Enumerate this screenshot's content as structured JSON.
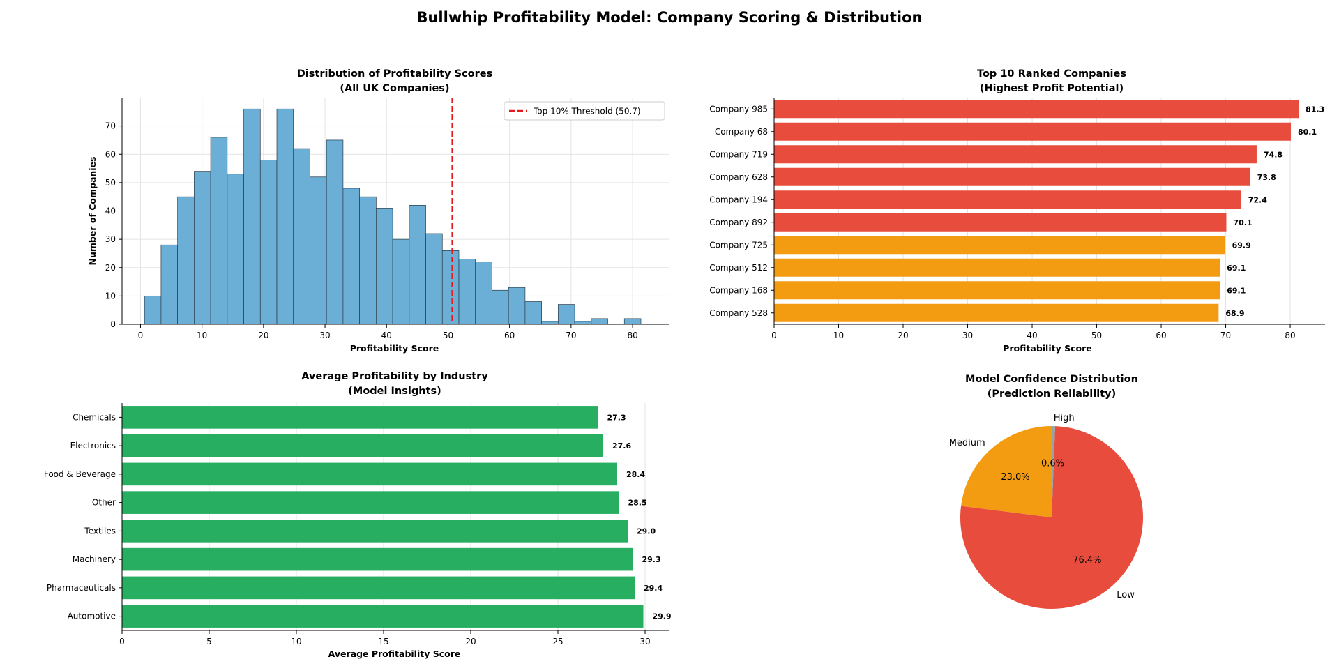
{
  "suptitle": "Bullwhip Profitability Model: Company Scoring & Distribution",
  "chart_data": [
    {
      "type": "bar",
      "subtype": "histogram",
      "title": [
        "Distribution of Profitability Scores",
        "(All UK Companies)"
      ],
      "xlabel": "Profitability Score",
      "ylabel": "Number of Companies",
      "xlim": [
        -3,
        86
      ],
      "ylim": [
        0,
        80
      ],
      "xticks": [
        0,
        10,
        20,
        30,
        40,
        50,
        60,
        70,
        80
      ],
      "yticks": [
        0,
        10,
        20,
        30,
        40,
        50,
        60,
        70
      ],
      "grid": true,
      "bin_edges": [
        0.65,
        3.34,
        6.03,
        8.72,
        11.41,
        14.1,
        16.79,
        19.48,
        22.17,
        24.86,
        27.55,
        30.24,
        32.93,
        35.62,
        38.31,
        41.0,
        43.69,
        46.38,
        49.07,
        51.76,
        54.45,
        57.14,
        59.83,
        62.52,
        65.21,
        67.9,
        70.59,
        73.28,
        75.97,
        78.66,
        81.35
      ],
      "counts": [
        10,
        28,
        45,
        54,
        66,
        53,
        76,
        58,
        76,
        62,
        52,
        65,
        48,
        45,
        41,
        30,
        42,
        32,
        26,
        23,
        22,
        12,
        13,
        8,
        1,
        7,
        1,
        2,
        0,
        2
      ],
      "bar_color": "#6baed6",
      "threshold": {
        "value": 50.7,
        "label": "Top 10% Threshold (50.7)",
        "color": "#e41a1c"
      },
      "legend_position": "top-right"
    },
    {
      "type": "bar",
      "orientation": "horizontal",
      "title": [
        "Top 10 Ranked Companies",
        "(Highest Profit Potential)"
      ],
      "xlabel": "Profitability Score",
      "xlim": [
        0,
        85.4
      ],
      "xticks": [
        0,
        10,
        20,
        30,
        40,
        50,
        60,
        70,
        80
      ],
      "grid": true,
      "categories": [
        "Company 528",
        "Company 168",
        "Company 512",
        "Company 725",
        "Company 892",
        "Company 194",
        "Company 628",
        "Company 719",
        "Company 68",
        "Company 985"
      ],
      "values": [
        68.9,
        69.1,
        69.1,
        69.9,
        70.1,
        72.4,
        73.8,
        74.8,
        80.1,
        81.3
      ],
      "value_labels": [
        "68.9",
        "69.1",
        "69.1",
        "69.9",
        "70.1",
        "72.4",
        "73.8",
        "74.8",
        "80.1",
        "81.3"
      ],
      "colors": [
        "#f39c12",
        "#f39c12",
        "#f39c12",
        "#f39c12",
        "#e74c3c",
        "#e74c3c",
        "#e74c3c",
        "#e74c3c",
        "#e74c3c",
        "#e74c3c"
      ]
    },
    {
      "type": "bar",
      "orientation": "horizontal",
      "title": [
        "Average Profitability by Industry",
        "(Model Insights)"
      ],
      "xlabel": "Average Profitability Score",
      "xlim": [
        0,
        31.4
      ],
      "xticks": [
        0,
        5,
        10,
        15,
        20,
        25,
        30
      ],
      "grid": true,
      "categories": [
        "Automotive",
        "Pharmaceuticals",
        "Machinery",
        "Textiles",
        "Other",
        "Food & Beverage",
        "Electronics",
        "Chemicals"
      ],
      "values": [
        29.9,
        29.4,
        29.3,
        29.0,
        28.5,
        28.4,
        27.6,
        27.3
      ],
      "value_labels": [
        "29.9",
        "29.4",
        "29.3",
        "29.0",
        "28.5",
        "28.4",
        "27.6",
        "27.3"
      ],
      "color": "#27ae60"
    },
    {
      "type": "pie",
      "title": [
        "Model Confidence Distribution",
        "(Prediction Reliability)"
      ],
      "slices": [
        {
          "label": "Medium",
          "value": 23.0,
          "pct_label": "23.0%",
          "color": "#f39c12"
        },
        {
          "label": "Low",
          "value": 76.4,
          "pct_label": "76.4%",
          "color": "#e74c3c"
        },
        {
          "label": "High",
          "value": 0.6,
          "pct_label": "0.6%",
          "color": "#95a5a6"
        }
      ]
    }
  ]
}
